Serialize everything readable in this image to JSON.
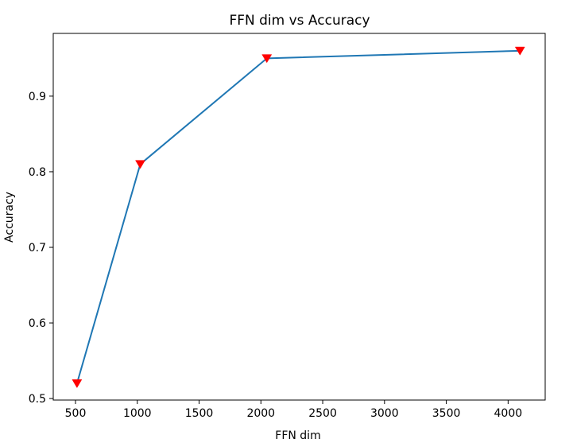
{
  "chart_data": {
    "type": "line",
    "title": "FFN dim vs Accuracy",
    "xlabel": "FFN dim",
    "ylabel": "Accuracy",
    "xlim": [
      320,
      4300
    ],
    "ylim": [
      0.498,
      0.983
    ],
    "xticks": [
      500,
      1000,
      1500,
      2000,
      2500,
      3000,
      3500,
      4000
    ],
    "yticks": [
      0.5,
      0.6,
      0.7,
      0.8,
      0.9
    ],
    "ytick_labels": [
      "0.5",
      "0.6",
      "0.7",
      "0.8",
      "0.9"
    ],
    "grid": false,
    "series": [
      {
        "x": [
          512,
          1024,
          2048,
          4096
        ],
        "y": [
          0.52,
          0.81,
          0.95,
          0.96
        ],
        "line_color": "#1f77b4",
        "marker": "triangle-down",
        "marker_color": "#ff0000"
      }
    ]
  }
}
